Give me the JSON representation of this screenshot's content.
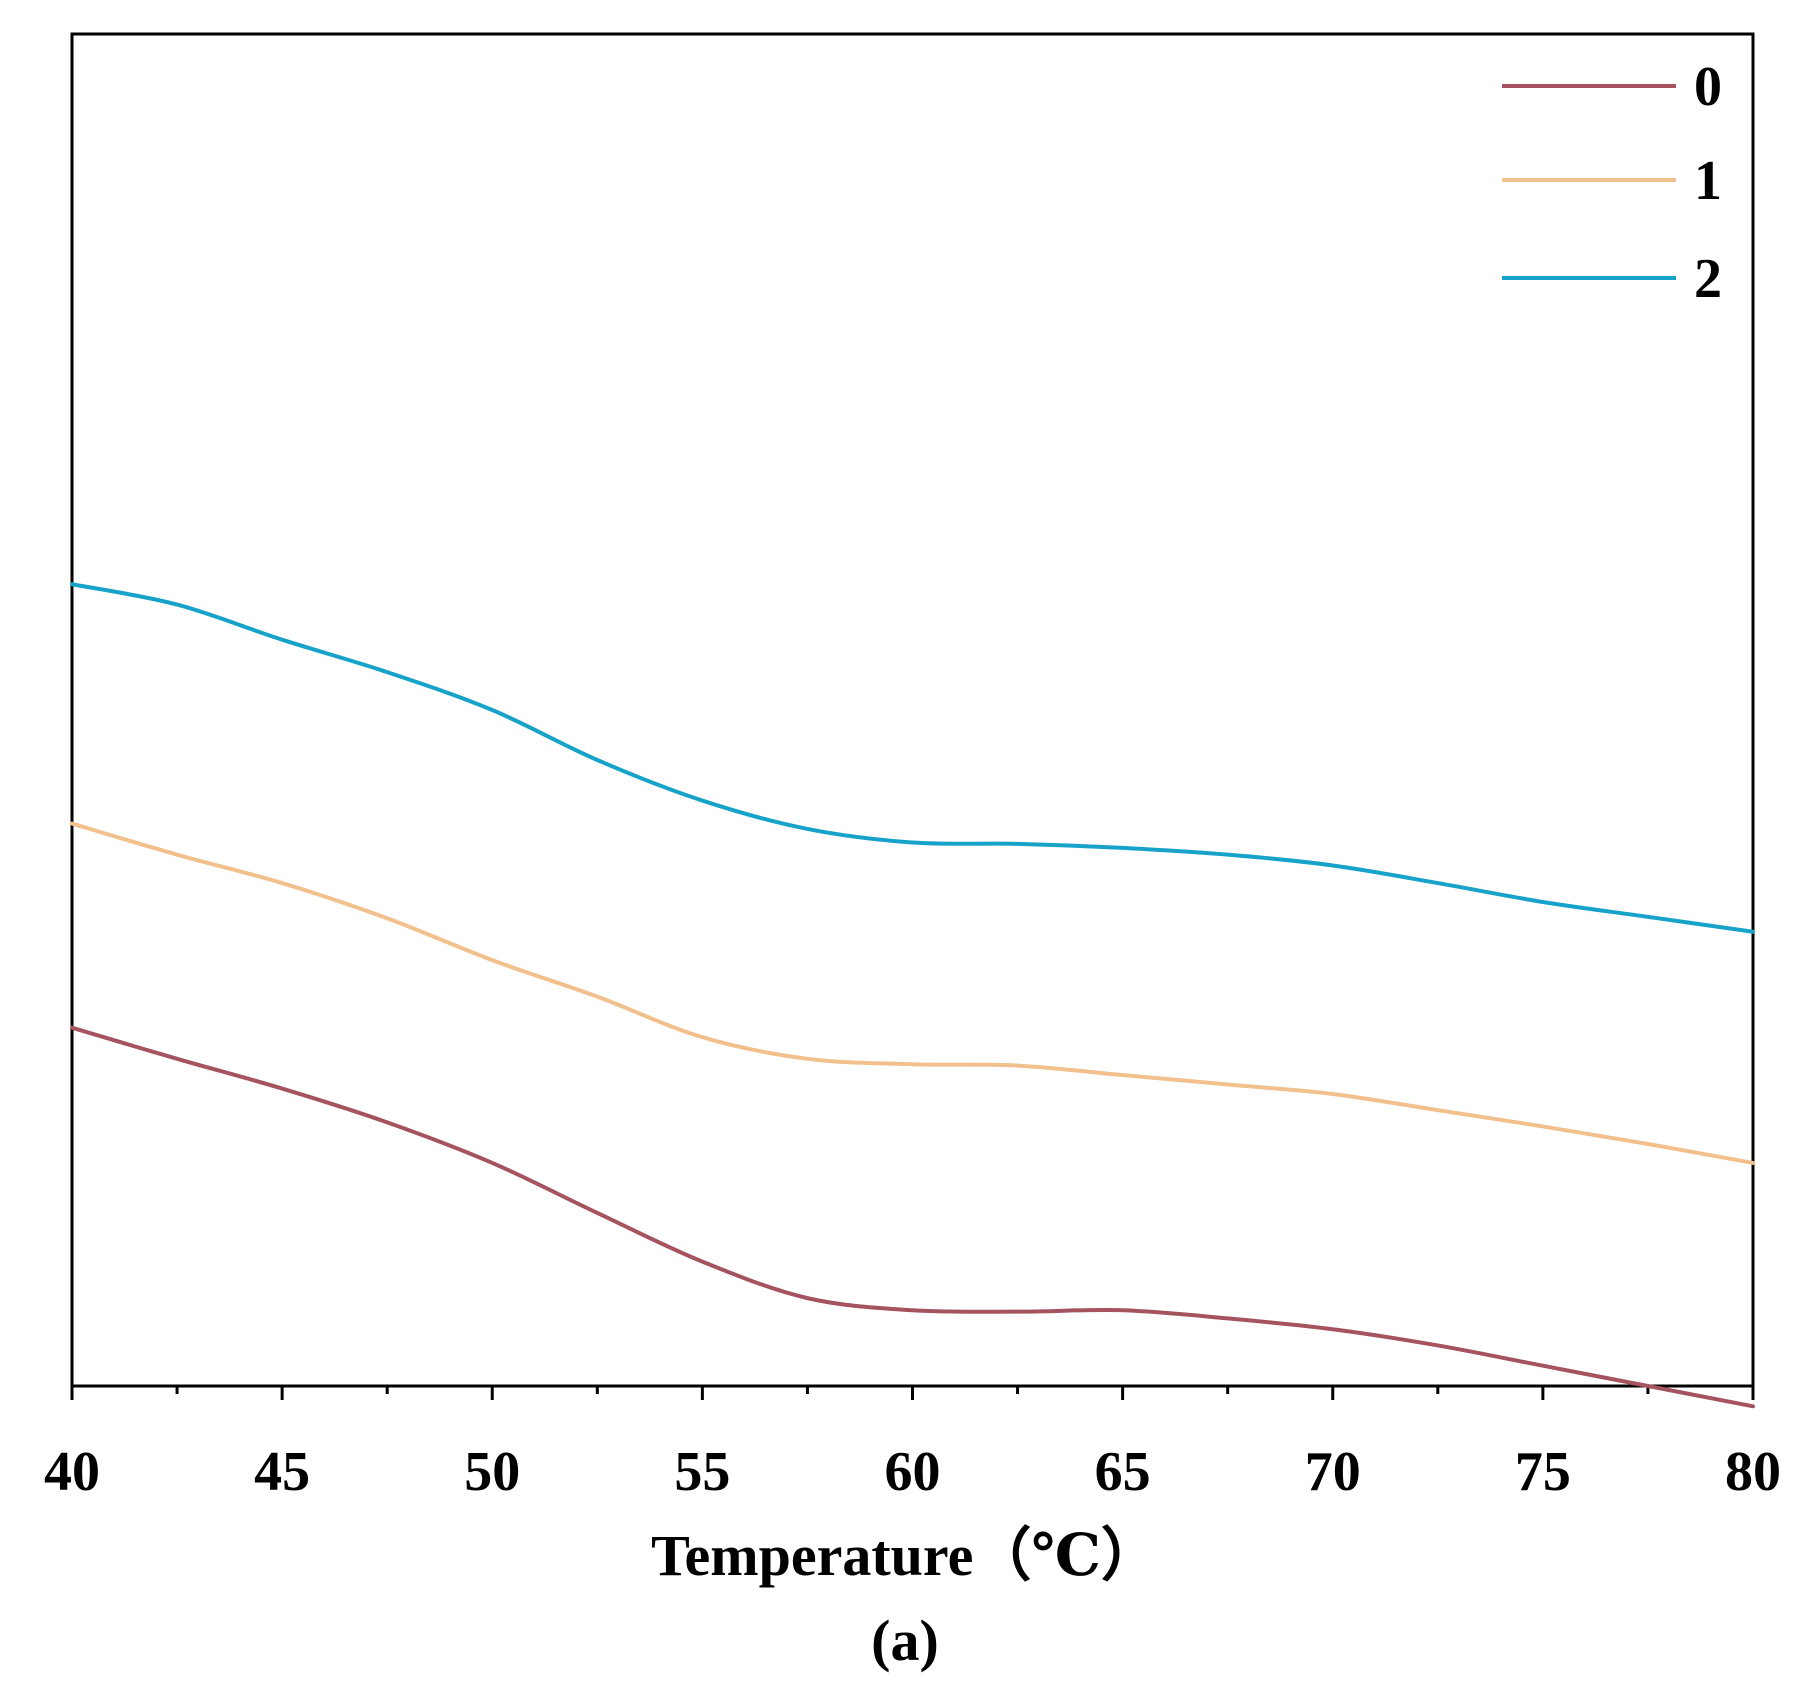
{
  "chart_data": {
    "type": "line",
    "title": "",
    "xlabel": "Temperature（℃）",
    "ylabel": "",
    "panel_label": "(a)",
    "xlim": [
      40,
      80
    ],
    "ylim": [
      0,
      100
    ],
    "x_ticks": [
      "40",
      "45",
      "50",
      "55",
      "60",
      "65",
      "70",
      "75",
      "80"
    ],
    "legend_position": "top-right",
    "series": [
      {
        "name": "0",
        "color": "#a5545f",
        "x": [
          40,
          42.5,
          45,
          47.5,
          50,
          52.5,
          55,
          57.5,
          60,
          62.5,
          65,
          67.5,
          70,
          72.5,
          75,
          77.5,
          80
        ],
        "y": [
          26.5,
          24.2,
          22.0,
          19.5,
          16.5,
          12.8,
          9.2,
          6.5,
          5.6,
          5.5,
          5.6,
          5.0,
          4.2,
          3.0,
          1.5,
          0.0,
          -1.5
        ]
      },
      {
        "name": "1",
        "color": "#f2c08c",
        "x": [
          40,
          42.5,
          45,
          47.5,
          50,
          52.5,
          55,
          57.5,
          60,
          62.5,
          65,
          67.5,
          70,
          72.5,
          75,
          77.5,
          80
        ],
        "y": [
          41.6,
          39.3,
          37.2,
          34.6,
          31.5,
          28.8,
          25.8,
          24.2,
          23.8,
          23.7,
          23.0,
          22.3,
          21.6,
          20.4,
          19.2,
          17.9,
          16.5
        ]
      },
      {
        "name": "2",
        "color": "#17a3c9",
        "x": [
          40,
          42.5,
          45,
          47.5,
          50,
          52.5,
          55,
          57.5,
          60,
          62.5,
          65,
          67.5,
          70,
          72.5,
          75,
          77.5,
          80
        ],
        "y": [
          59.3,
          57.8,
          55.2,
          52.8,
          50.0,
          46.3,
          43.3,
          41.2,
          40.2,
          40.1,
          39.8,
          39.3,
          38.5,
          37.2,
          35.8,
          34.7,
          33.6
        ]
      }
    ]
  }
}
